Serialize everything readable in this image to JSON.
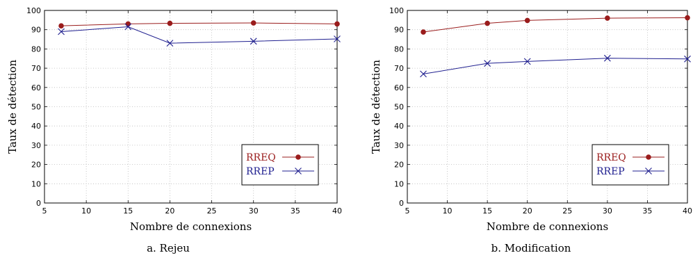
{
  "charts": [
    {
      "id": "left",
      "caption": "a. Rejeu",
      "chart_data": {
        "type": "line",
        "xlabel": "Nombre de connexions",
        "ylabel": "Taux de détection",
        "xlim": [
          5,
          40
        ],
        "ylim": [
          0,
          100
        ],
        "xticks": [
          5,
          10,
          15,
          20,
          25,
          30,
          35,
          40
        ],
        "yticks": [
          0,
          10,
          20,
          30,
          40,
          50,
          60,
          70,
          80,
          90,
          100
        ],
        "grid": true,
        "legend_position": "bottom-right",
        "x": [
          7,
          15,
          20,
          30,
          40
        ],
        "series": [
          {
            "name": "RREQ",
            "color": "#9a1c1c",
            "marker": "circle",
            "values": [
              92,
              93,
              93.3,
              93.5,
              93
            ]
          },
          {
            "name": "RREP",
            "color": "#1f1f8f",
            "marker": "x",
            "values": [
              89,
              91.5,
              83,
              84,
              85.2
            ]
          }
        ]
      }
    },
    {
      "id": "right",
      "caption": "b. Modification",
      "chart_data": {
        "type": "line",
        "xlabel": "Nombre de connexions",
        "ylabel": "Taux de détection",
        "xlim": [
          5,
          40
        ],
        "ylim": [
          0,
          100
        ],
        "xticks": [
          5,
          10,
          15,
          20,
          25,
          30,
          35,
          40
        ],
        "yticks": [
          0,
          10,
          20,
          30,
          40,
          50,
          60,
          70,
          80,
          90,
          100
        ],
        "grid": true,
        "legend_position": "bottom-right",
        "x": [
          7,
          15,
          20,
          30,
          40
        ],
        "series": [
          {
            "name": "RREQ",
            "color": "#9a1c1c",
            "marker": "circle",
            "values": [
              88.8,
              93.3,
              94.8,
              96,
              96.2
            ]
          },
          {
            "name": "RREP",
            "color": "#1f1f8f",
            "marker": "x",
            "values": [
              67,
              72.5,
              73.5,
              75.2,
              74.8
            ]
          }
        ]
      }
    }
  ]
}
